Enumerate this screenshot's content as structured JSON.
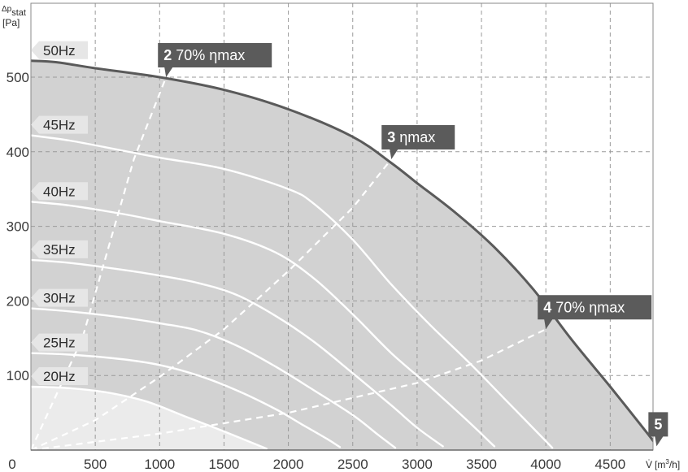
{
  "chart_data": {
    "type": "line",
    "xlabel": "V̇ [m³/h]",
    "ylabel": "Δpstat [Pa]",
    "ylabel_parts": {
      "symbol": "Δp",
      "subscript": "stat",
      "unit": "[Pa]"
    },
    "xlabel_parts": {
      "symbol": "V̇",
      "unit_pre": "[m",
      "unit_sup": "3",
      "unit_post": "/h]"
    },
    "xlim": [
      0,
      5000
    ],
    "ylim": [
      0,
      560
    ],
    "x_ticks": [
      0,
      500,
      1000,
      1500,
      2000,
      2500,
      3000,
      3500,
      4000,
      4500
    ],
    "y_ticks": [
      100,
      200,
      300,
      400,
      500
    ],
    "grid": true,
    "colors": {
      "envelope_fill": "#d2d2d2",
      "low_region_fill": "#ebebeb",
      "envelope_line": "#5a5a5a",
      "curve_line": "#ffffff",
      "grid_line": "#9a9a9a",
      "callout_bg": "#5b5b5b",
      "tag_bg": "#e6e6e6"
    },
    "series": [
      {
        "name": "50Hz",
        "points": [
          [
            0,
            522
          ],
          [
            200,
            520
          ],
          [
            500,
            512
          ],
          [
            1000,
            500
          ],
          [
            1500,
            483
          ],
          [
            2000,
            457
          ],
          [
            2500,
            420
          ],
          [
            2800,
            385
          ],
          [
            3000,
            358
          ],
          [
            3300,
            318
          ],
          [
            3600,
            272
          ],
          [
            3900,
            216
          ],
          [
            4200,
            148
          ],
          [
            4500,
            85
          ],
          [
            4800,
            20
          ],
          [
            4860,
            5
          ]
        ]
      },
      {
        "name": "45Hz",
        "points": [
          [
            0,
            422
          ],
          [
            300,
            415
          ],
          [
            700,
            402
          ],
          [
            1000,
            392
          ],
          [
            1500,
            377
          ],
          [
            2000,
            350
          ],
          [
            2200,
            330
          ],
          [
            2500,
            282
          ],
          [
            2800,
            222
          ],
          [
            3100,
            168
          ],
          [
            3400,
            118
          ],
          [
            3700,
            65
          ],
          [
            4000,
            12
          ],
          [
            4050,
            3
          ]
        ]
      },
      {
        "name": "40Hz",
        "points": [
          [
            0,
            333
          ],
          [
            300,
            328
          ],
          [
            700,
            317
          ],
          [
            1000,
            307
          ],
          [
            1500,
            290
          ],
          [
            1900,
            265
          ],
          [
            2200,
            230
          ],
          [
            2500,
            182
          ],
          [
            2800,
            130
          ],
          [
            3100,
            85
          ],
          [
            3400,
            38
          ],
          [
            3600,
            5
          ]
        ]
      },
      {
        "name": "35Hz",
        "points": [
          [
            0,
            255
          ],
          [
            300,
            251
          ],
          [
            700,
            242
          ],
          [
            1000,
            234
          ],
          [
            1300,
            224
          ],
          [
            1600,
            208
          ],
          [
            1900,
            180
          ],
          [
            2200,
            145
          ],
          [
            2500,
            103
          ],
          [
            2800,
            60
          ],
          [
            3000,
            30
          ],
          [
            3200,
            5
          ]
        ]
      },
      {
        "name": "30Hz",
        "points": [
          [
            0,
            190
          ],
          [
            300,
            186
          ],
          [
            700,
            178
          ],
          [
            1000,
            170
          ],
          [
            1300,
            160
          ],
          [
            1600,
            140
          ],
          [
            1900,
            112
          ],
          [
            2200,
            80
          ],
          [
            2500,
            47
          ],
          [
            2700,
            20
          ],
          [
            2830,
            3
          ]
        ]
      },
      {
        "name": "25Hz",
        "points": [
          [
            0,
            130
          ],
          [
            300,
            128
          ],
          [
            700,
            122
          ],
          [
            1000,
            114
          ],
          [
            1300,
            100
          ],
          [
            1600,
            80
          ],
          [
            1900,
            55
          ],
          [
            2100,
            35
          ],
          [
            2300,
            15
          ],
          [
            2400,
            4
          ]
        ]
      },
      {
        "name": "20Hz",
        "points": [
          [
            0,
            85
          ],
          [
            300,
            83
          ],
          [
            600,
            77
          ],
          [
            900,
            65
          ],
          [
            1200,
            45
          ],
          [
            1500,
            25
          ],
          [
            1700,
            11
          ],
          [
            1830,
            2
          ]
        ]
      }
    ],
    "reference_lines": [
      {
        "name": "70% ηmax (low)",
        "points": [
          [
            0,
            0
          ],
          [
            400,
            150
          ],
          [
            800,
            390
          ],
          [
            1050,
            500
          ]
        ]
      },
      {
        "name": "ηmax",
        "points": [
          [
            0,
            0
          ],
          [
            500,
            40
          ],
          [
            1000,
            98
          ],
          [
            1500,
            162
          ],
          [
            2000,
            240
          ],
          [
            2500,
            325
          ],
          [
            2800,
            390
          ]
        ]
      },
      {
        "name": "70% ηmax (high)",
        "points": [
          [
            0,
            0
          ],
          [
            1000,
            22
          ],
          [
            2000,
            50
          ],
          [
            3000,
            90
          ],
          [
            3500,
            120
          ],
          [
            4000,
            162
          ]
        ]
      }
    ],
    "callouts": [
      {
        "number": "2",
        "text": "70% ηmax"
      },
      {
        "number": "3",
        "text": "ηmax"
      },
      {
        "number": "4",
        "text": "70% ηmax"
      },
      {
        "number": "5",
        "text": ""
      }
    ],
    "callout_anchors": [
      [
        1050,
        500
      ],
      [
        2800,
        390
      ],
      [
        4000,
        162
      ],
      [
        4860,
        5
      ]
    ]
  }
}
